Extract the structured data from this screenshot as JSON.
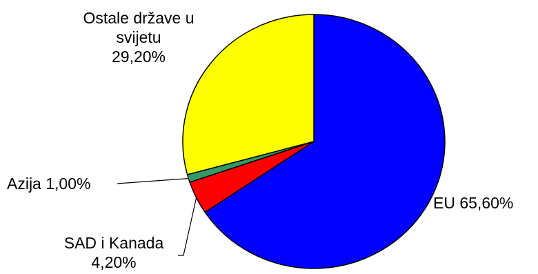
{
  "chart_data": {
    "type": "pie",
    "slices": [
      {
        "label": "EU",
        "value": 65.6,
        "value_label": "65,60%",
        "color": "#0000ff"
      },
      {
        "label": "SAD i Kanada",
        "value": 4.2,
        "value_label": "4,20%",
        "color": "#ff0000"
      },
      {
        "label": "Azija",
        "value": 1.0,
        "value_label": "1,00%",
        "color": "#339966"
      },
      {
        "label": "Ostale države u svijetu",
        "value": 29.2,
        "value_label": "29,20%",
        "color": "#ffff00"
      }
    ],
    "label_texts": {
      "eu": "EU 65,60%",
      "sad_line1": "SAD i Kanada",
      "sad_line2": "4,20%",
      "azija": "Azija 1,00%",
      "ostale_line1": "Ostale države u",
      "ostale_line2": "svijetu",
      "ostale_line3": "29,20%"
    },
    "start_angle": "12 o'clock",
    "direction": "clockwise",
    "legend": "none"
  }
}
